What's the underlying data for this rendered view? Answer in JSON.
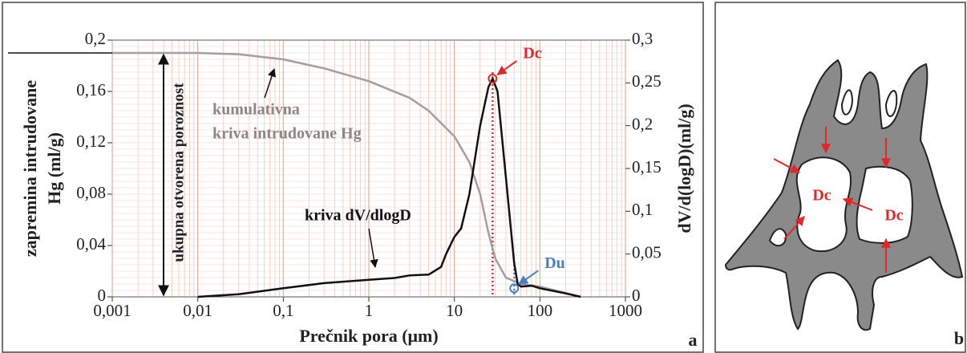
{
  "chart_data": {
    "type": "line",
    "xlabel": "Prečnik pora (μm)",
    "ylabel": [
      "zapremina intrudovane",
      "Hg (ml/g)"
    ],
    "y2label": "dV/d(logD)(ml/g)",
    "log_x": true,
    "grid": true,
    "xlim": [
      0.001,
      1000
    ],
    "ylim": [
      0,
      0.2
    ],
    "y2lim": [
      0,
      0.3
    ],
    "xticks": [
      {
        "value": 0.001,
        "label": "0,001"
      },
      {
        "value": 0.01,
        "label": "0,01"
      },
      {
        "value": 0.1,
        "label": "0,1"
      },
      1,
      10,
      100,
      1000
    ],
    "yticks": [
      0,
      {
        "value": 0.04,
        "label": "0,04"
      },
      {
        "value": 0.08,
        "label": "0,08"
      },
      {
        "value": 0.12,
        "label": "0,12"
      },
      {
        "value": 0.16,
        "label": "0,16"
      },
      {
        "value": 0.2,
        "label": "0,2"
      }
    ],
    "y2ticks": [
      0,
      {
        "value": 0.05,
        "label": "0,05"
      },
      {
        "value": 0.1,
        "label": "0,1"
      },
      {
        "value": 0.15,
        "label": "0,15"
      },
      {
        "value": 0.2,
        "label": "0,2"
      },
      {
        "value": 0.25,
        "label": "0,25"
      },
      {
        "value": 0.3,
        "label": "0,3"
      }
    ],
    "series": [
      {
        "color": "#a99c9c",
        "x": [
          0.001,
          0.01,
          0.03,
          0.1,
          0.3,
          1,
          3,
          5,
          10,
          15,
          20,
          25,
          30,
          40,
          60,
          100,
          200,
          300
        ],
        "values": [
          0.19,
          0.19,
          0.189,
          0.185,
          0.178,
          0.168,
          0.155,
          0.145,
          0.125,
          0.105,
          0.08,
          0.05,
          0.03,
          0.015,
          0.01,
          0.008,
          0.003,
          0
        ]
      },
      {
        "color": "#111111",
        "axis": "y2",
        "x": [
          0.01,
          0.03,
          0.1,
          0.3,
          1,
          2,
          3,
          5,
          7,
          8,
          10,
          12,
          15,
          20,
          25,
          28,
          32,
          40,
          50,
          55,
          60,
          80,
          100,
          200,
          300
        ],
        "values": [
          0,
          0.003,
          0.01,
          0.016,
          0.02,
          0.022,
          0.025,
          0.026,
          0.035,
          0.05,
          0.07,
          0.08,
          0.12,
          0.2,
          0.245,
          0.255,
          0.24,
          0.14,
          0.04,
          0.015,
          0.012,
          0.013,
          0.01,
          0.004,
          0
        ]
      }
    ],
    "markers": [
      {
        "label": "Dc",
        "x": 28,
        "y": 0.255,
        "color": "#e0282a",
        "axis": "y2"
      },
      {
        "label": "Du",
        "x": 50,
        "y": 0.01,
        "color": "#4a7fc1",
        "axis": "y2"
      }
    ],
    "annotations": {
      "cumulative": [
        "kumulativna",
        "kriva intrudovane Hg"
      ],
      "derivative": "kriva dV/dlogD",
      "porosity": "ukupna otvorena poroznost"
    },
    "panel_label": "a"
  },
  "diagram": {
    "labels": [
      "Dc",
      "Dc"
    ],
    "panel_label": "b"
  }
}
